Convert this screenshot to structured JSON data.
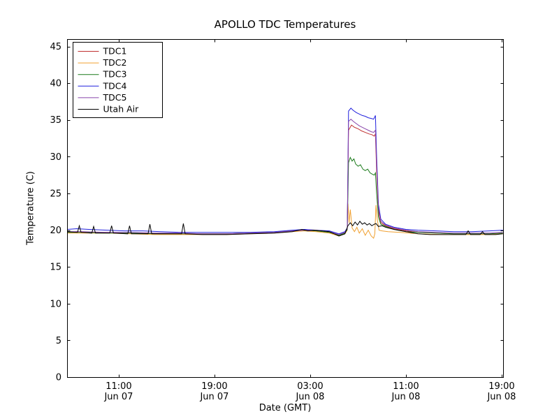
{
  "chart_data": {
    "type": "line",
    "title": "APOLLO TDC Temperatures",
    "xlabel": "Date (GMT)",
    "ylabel": "Temperature (C)",
    "xlim": [
      6.68,
      43.12
    ],
    "ylim": [
      0,
      46
    ],
    "yticks": [
      0,
      5,
      10,
      15,
      20,
      25,
      30,
      35,
      40,
      45
    ],
    "xticks": [
      {
        "value": 11,
        "line1": "11:00",
        "line2": "Jun 07"
      },
      {
        "value": 19,
        "line1": "19:00",
        "line2": "Jun 07"
      },
      {
        "value": 27,
        "line1": "03:00",
        "line2": "Jun 08"
      },
      {
        "value": 35,
        "line1": "11:00",
        "line2": "Jun 08"
      },
      {
        "value": 43,
        "line1": "19:00",
        "line2": "Jun 08"
      }
    ],
    "legend_position": "upper-left",
    "grid": false,
    "series": [
      {
        "name": "TDC1",
        "color": "#c03030",
        "points": [
          [
            6.7,
            19.7
          ],
          [
            7.5,
            19.8
          ],
          [
            8.5,
            19.7
          ],
          [
            10,
            19.7
          ],
          [
            11.5,
            19.6
          ],
          [
            13,
            19.6
          ],
          [
            14.5,
            19.5
          ],
          [
            16,
            19.5
          ],
          [
            18,
            19.5
          ],
          [
            20,
            19.5
          ],
          [
            22,
            19.6
          ],
          [
            24,
            19.7
          ],
          [
            25.5,
            19.9
          ],
          [
            26.5,
            20.0
          ],
          [
            27.5,
            19.9
          ],
          [
            28.6,
            19.7
          ],
          [
            29.4,
            19.3
          ],
          [
            29.9,
            19.6
          ],
          [
            30.1,
            20.2
          ],
          [
            30.2,
            33.6
          ],
          [
            30.45,
            34.3
          ],
          [
            30.7,
            34.0
          ],
          [
            31.0,
            33.8
          ],
          [
            31.3,
            33.5
          ],
          [
            31.6,
            33.3
          ],
          [
            31.9,
            33.1
          ],
          [
            32.15,
            33.0
          ],
          [
            32.35,
            32.8
          ],
          [
            32.45,
            33.1
          ],
          [
            32.55,
            28.0
          ],
          [
            32.7,
            22.5
          ],
          [
            32.9,
            21.0
          ],
          [
            33.3,
            20.6
          ],
          [
            34.0,
            20.2
          ],
          [
            35.0,
            19.9
          ],
          [
            36.0,
            19.7
          ],
          [
            37.5,
            19.6
          ],
          [
            39.0,
            19.5
          ],
          [
            40.5,
            19.5
          ],
          [
            42.0,
            19.5
          ],
          [
            43.1,
            19.6
          ]
        ]
      },
      {
        "name": "TDC2",
        "color": "#f0a030",
        "points": [
          [
            6.7,
            19.6
          ],
          [
            8,
            19.6
          ],
          [
            10,
            19.6
          ],
          [
            12,
            19.5
          ],
          [
            14,
            19.4
          ],
          [
            16,
            19.4
          ],
          [
            18,
            19.4
          ],
          [
            20,
            19.4
          ],
          [
            22,
            19.5
          ],
          [
            24,
            19.6
          ],
          [
            25.5,
            19.8
          ],
          [
            26.5,
            19.9
          ],
          [
            27.5,
            19.8
          ],
          [
            28.6,
            19.6
          ],
          [
            29.4,
            19.2
          ],
          [
            29.9,
            19.5
          ],
          [
            30.1,
            20.0
          ],
          [
            30.15,
            23.6
          ],
          [
            30.25,
            21.0
          ],
          [
            30.35,
            22.8
          ],
          [
            30.5,
            20.3
          ],
          [
            30.7,
            19.8
          ],
          [
            30.9,
            20.4
          ],
          [
            31.1,
            19.6
          ],
          [
            31.35,
            20.2
          ],
          [
            31.6,
            19.3
          ],
          [
            31.85,
            20.0
          ],
          [
            32.1,
            19.2
          ],
          [
            32.3,
            18.9
          ],
          [
            32.4,
            19.5
          ],
          [
            32.5,
            23.4
          ],
          [
            32.6,
            21.5
          ],
          [
            32.75,
            20.0
          ],
          [
            33.0,
            19.9
          ],
          [
            33.5,
            19.8
          ],
          [
            34.5,
            19.7
          ],
          [
            36,
            19.5
          ],
          [
            38,
            19.4
          ],
          [
            40,
            19.4
          ],
          [
            42,
            19.4
          ],
          [
            43.1,
            19.5
          ]
        ]
      },
      {
        "name": "TDC3",
        "color": "#1a7a1a",
        "points": [
          [
            6.7,
            19.7
          ],
          [
            8,
            19.7
          ],
          [
            10,
            19.6
          ],
          [
            12,
            19.6
          ],
          [
            14,
            19.5
          ],
          [
            16,
            19.5
          ],
          [
            18,
            19.5
          ],
          [
            20,
            19.5
          ],
          [
            22,
            19.6
          ],
          [
            24,
            19.7
          ],
          [
            25.5,
            19.9
          ],
          [
            26.5,
            20.0
          ],
          [
            27.5,
            19.9
          ],
          [
            28.6,
            19.7
          ],
          [
            29.4,
            19.3
          ],
          [
            29.9,
            19.6
          ],
          [
            30.1,
            20.1
          ],
          [
            30.2,
            29.2
          ],
          [
            30.35,
            29.9
          ],
          [
            30.5,
            29.4
          ],
          [
            30.65,
            29.7
          ],
          [
            30.8,
            29.0
          ],
          [
            31.0,
            28.7
          ],
          [
            31.2,
            28.9
          ],
          [
            31.4,
            28.3
          ],
          [
            31.6,
            28.1
          ],
          [
            31.8,
            28.3
          ],
          [
            32.0,
            27.8
          ],
          [
            32.2,
            27.6
          ],
          [
            32.35,
            27.5
          ],
          [
            32.45,
            27.8
          ],
          [
            32.55,
            25.0
          ],
          [
            32.7,
            21.8
          ],
          [
            32.9,
            20.8
          ],
          [
            33.3,
            20.5
          ],
          [
            34.0,
            20.1
          ],
          [
            35.0,
            19.8
          ],
          [
            36.0,
            19.7
          ],
          [
            37.5,
            19.6
          ],
          [
            39.0,
            19.5
          ],
          [
            40.5,
            19.5
          ],
          [
            42.0,
            19.5
          ],
          [
            43.1,
            19.6
          ]
        ]
      },
      {
        "name": "TDC4",
        "color": "#2020dd",
        "points": [
          [
            6.7,
            20.1
          ],
          [
            7.5,
            20.2
          ],
          [
            8.5,
            20.1
          ],
          [
            10,
            20.0
          ],
          [
            11.5,
            19.9
          ],
          [
            13,
            19.9
          ],
          [
            14.5,
            19.8
          ],
          [
            16,
            19.7
          ],
          [
            18,
            19.7
          ],
          [
            20,
            19.7
          ],
          [
            22,
            19.7
          ],
          [
            24,
            19.8
          ],
          [
            25.5,
            20.0
          ],
          [
            26.5,
            20.1
          ],
          [
            27.5,
            20.0
          ],
          [
            28.6,
            19.9
          ],
          [
            29.4,
            19.5
          ],
          [
            29.9,
            19.8
          ],
          [
            30.1,
            20.3
          ],
          [
            30.2,
            36.2
          ],
          [
            30.4,
            36.6
          ],
          [
            30.6,
            36.3
          ],
          [
            30.85,
            36.0
          ],
          [
            31.1,
            35.8
          ],
          [
            31.35,
            35.6
          ],
          [
            31.6,
            35.5
          ],
          [
            31.85,
            35.3
          ],
          [
            32.1,
            35.2
          ],
          [
            32.3,
            35.1
          ],
          [
            32.45,
            35.6
          ],
          [
            32.55,
            30.0
          ],
          [
            32.7,
            23.5
          ],
          [
            32.9,
            21.5
          ],
          [
            33.3,
            20.8
          ],
          [
            34.0,
            20.4
          ],
          [
            35.0,
            20.1
          ],
          [
            36.0,
            20.0
          ],
          [
            37.5,
            19.9
          ],
          [
            39.0,
            19.8
          ],
          [
            40.5,
            19.8
          ],
          [
            42.0,
            19.9
          ],
          [
            43.1,
            20.0
          ]
        ]
      },
      {
        "name": "TDC5",
        "color": "#8844aa",
        "points": [
          [
            6.7,
            19.8
          ],
          [
            8,
            19.8
          ],
          [
            10,
            19.7
          ],
          [
            12,
            19.7
          ],
          [
            14,
            19.6
          ],
          [
            16,
            19.6
          ],
          [
            18,
            19.5
          ],
          [
            20,
            19.5
          ],
          [
            22,
            19.6
          ],
          [
            24,
            19.7
          ],
          [
            25.5,
            19.9
          ],
          [
            26.5,
            20.0
          ],
          [
            27.5,
            20.0
          ],
          [
            28.6,
            19.8
          ],
          [
            29.4,
            19.4
          ],
          [
            29.9,
            19.7
          ],
          [
            30.1,
            20.2
          ],
          [
            30.2,
            34.8
          ],
          [
            30.4,
            35.1
          ],
          [
            30.6,
            34.8
          ],
          [
            30.85,
            34.5
          ],
          [
            31.1,
            34.2
          ],
          [
            31.35,
            34.0
          ],
          [
            31.6,
            33.8
          ],
          [
            31.85,
            33.6
          ],
          [
            32.1,
            33.4
          ],
          [
            32.3,
            33.3
          ],
          [
            32.45,
            33.6
          ],
          [
            32.55,
            29.0
          ],
          [
            32.7,
            23.0
          ],
          [
            32.9,
            21.2
          ],
          [
            33.3,
            20.7
          ],
          [
            34.0,
            20.3
          ],
          [
            35.0,
            20.0
          ],
          [
            36.0,
            19.8
          ],
          [
            37.5,
            19.7
          ],
          [
            39.0,
            19.6
          ],
          [
            40.5,
            19.6
          ],
          [
            42.0,
            19.6
          ],
          [
            43.1,
            19.7
          ]
        ]
      },
      {
        "name": "Utah Air",
        "color": "#000000",
        "points": [
          [
            6.7,
            19.8
          ],
          [
            7.55,
            19.7
          ],
          [
            7.7,
            20.6
          ],
          [
            7.85,
            19.7
          ],
          [
            8.75,
            19.6
          ],
          [
            8.9,
            20.5
          ],
          [
            9.05,
            19.6
          ],
          [
            10.25,
            19.6
          ],
          [
            10.4,
            20.6
          ],
          [
            10.55,
            19.6
          ],
          [
            11.75,
            19.5
          ],
          [
            11.9,
            20.6
          ],
          [
            12.05,
            19.5
          ],
          [
            13.45,
            19.5
          ],
          [
            13.6,
            20.8
          ],
          [
            13.75,
            19.5
          ],
          [
            16.25,
            19.5
          ],
          [
            16.4,
            20.9
          ],
          [
            16.55,
            19.5
          ],
          [
            18,
            19.4
          ],
          [
            20,
            19.4
          ],
          [
            22,
            19.5
          ],
          [
            24,
            19.6
          ],
          [
            25.5,
            19.8
          ],
          [
            26.3,
            20.1
          ],
          [
            26.8,
            19.9
          ],
          [
            27.3,
            20.0
          ],
          [
            28.0,
            19.9
          ],
          [
            28.6,
            19.8
          ],
          [
            29.4,
            19.2
          ],
          [
            29.9,
            19.5
          ],
          [
            30.15,
            20.6
          ],
          [
            30.35,
            21.0
          ],
          [
            30.55,
            20.6
          ],
          [
            30.75,
            21.1
          ],
          [
            30.95,
            20.7
          ],
          [
            31.15,
            21.2
          ],
          [
            31.35,
            20.8
          ],
          [
            31.55,
            21.0
          ],
          [
            31.75,
            20.7
          ],
          [
            31.95,
            20.9
          ],
          [
            32.15,
            20.6
          ],
          [
            32.35,
            20.8
          ],
          [
            32.5,
            20.9
          ],
          [
            32.7,
            20.5
          ],
          [
            33.0,
            20.6
          ],
          [
            33.3,
            20.4
          ],
          [
            34.0,
            20.1
          ],
          [
            35.0,
            19.8
          ],
          [
            36.0,
            19.5
          ],
          [
            37.0,
            19.4
          ],
          [
            38.5,
            19.4
          ],
          [
            40.0,
            19.4
          ],
          [
            40.2,
            19.9
          ],
          [
            40.4,
            19.4
          ],
          [
            41.2,
            19.4
          ],
          [
            41.4,
            19.8
          ],
          [
            41.6,
            19.4
          ],
          [
            42.5,
            19.4
          ],
          [
            43.1,
            19.5
          ]
        ]
      }
    ]
  }
}
